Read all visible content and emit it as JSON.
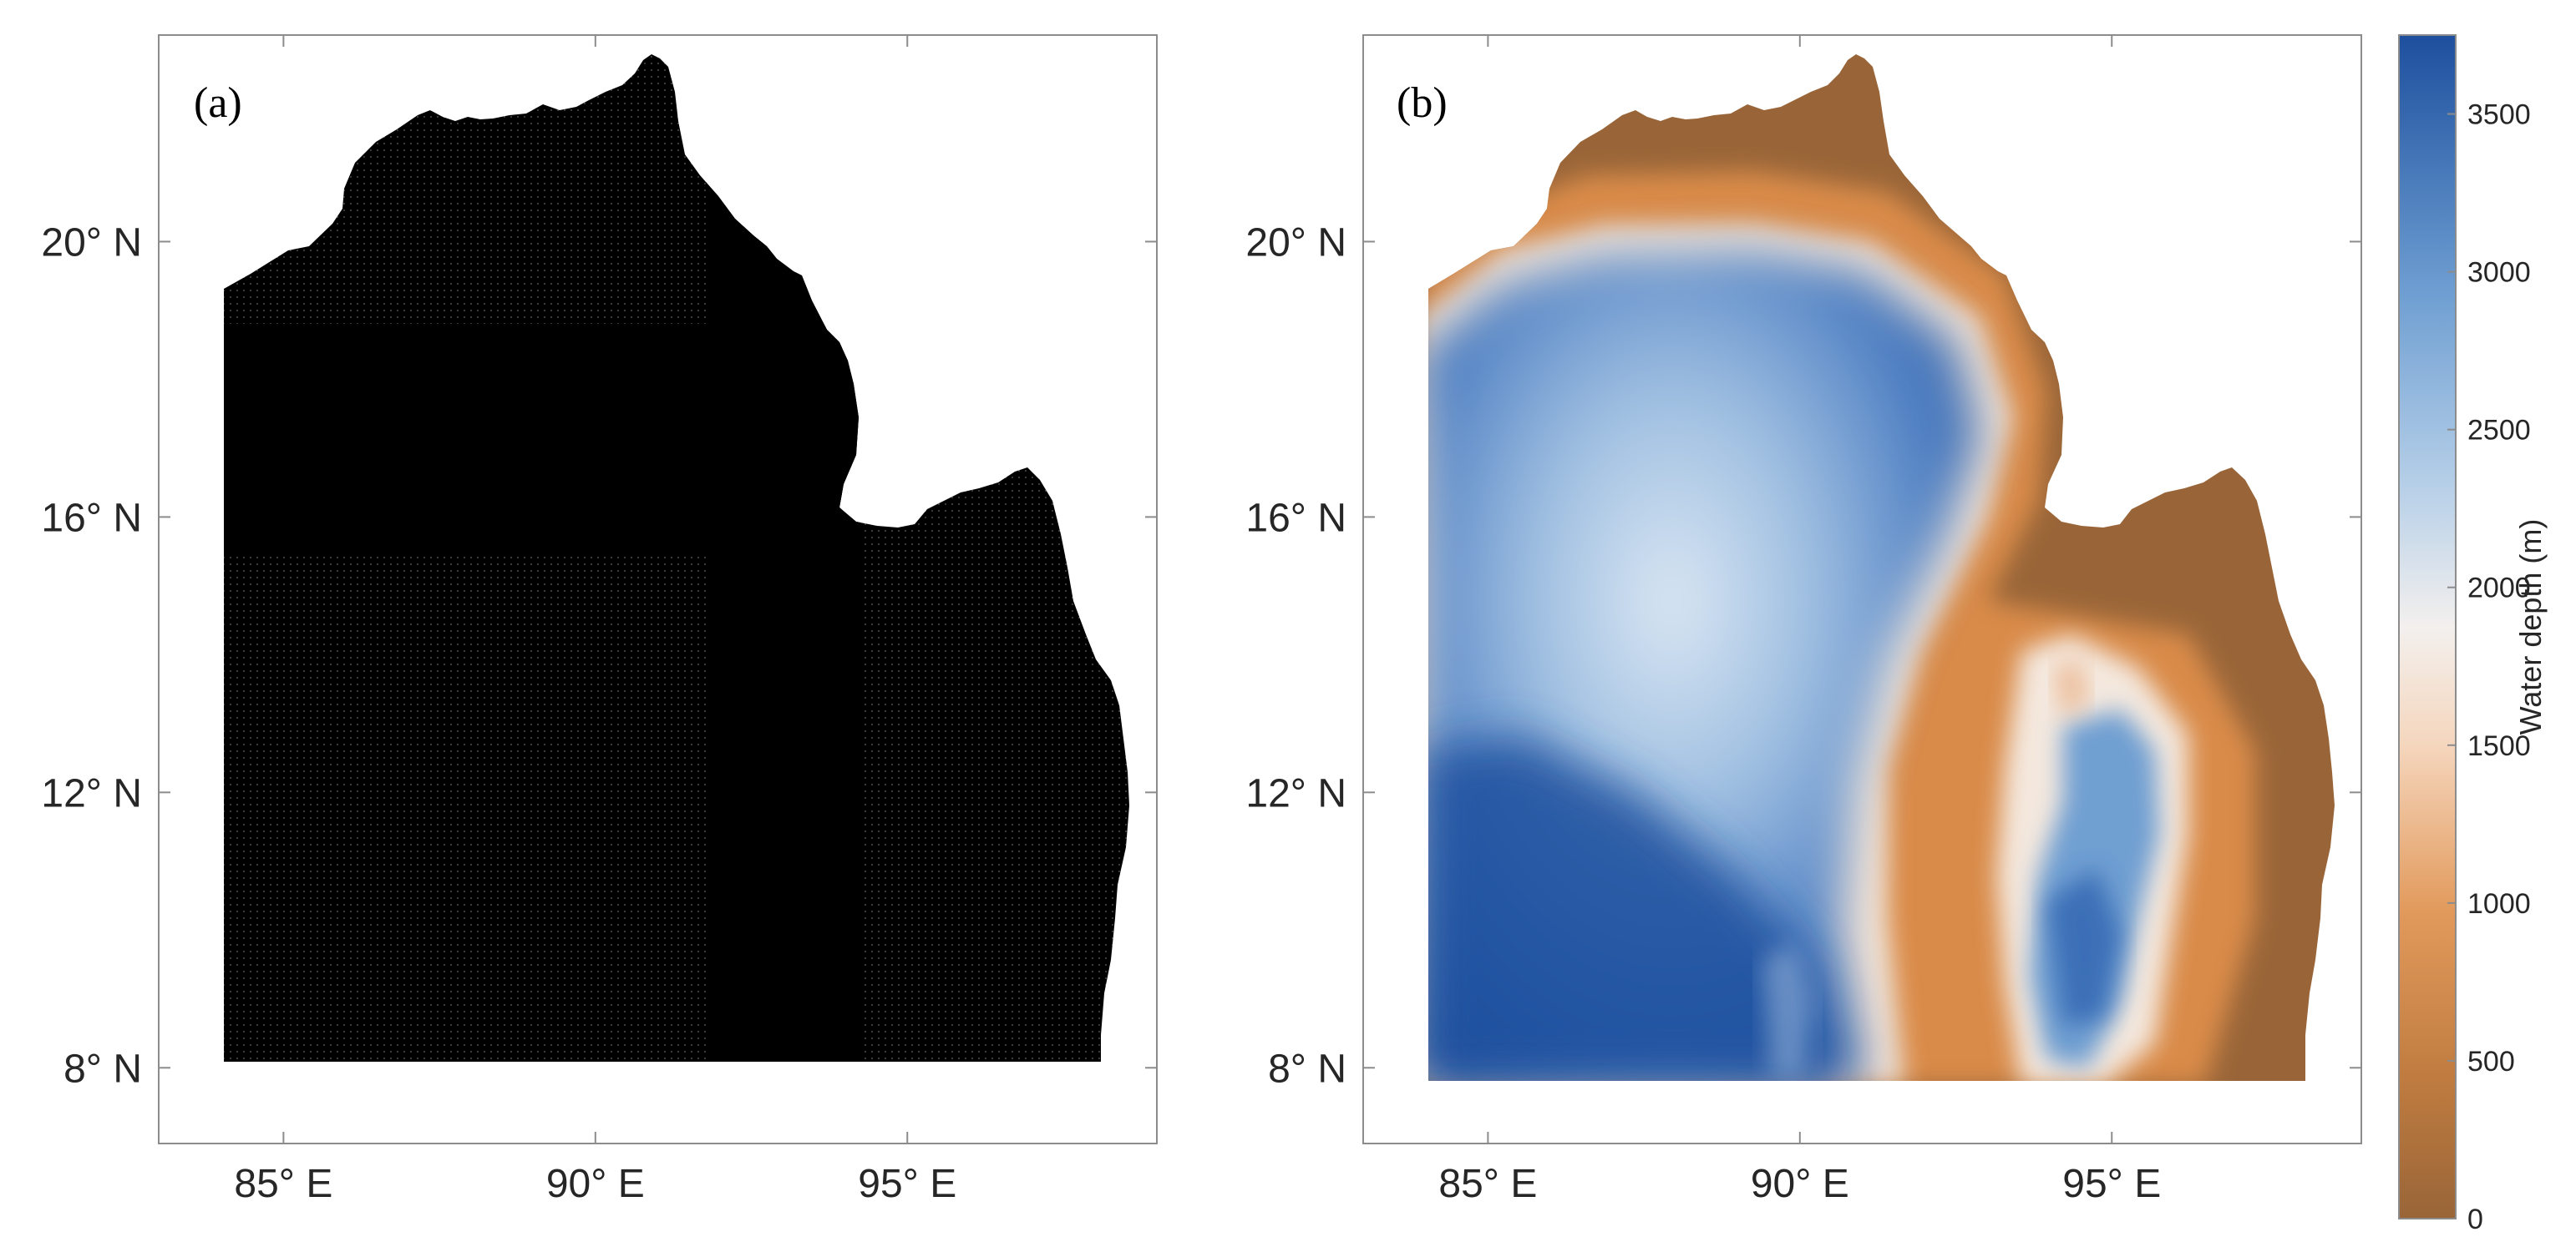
{
  "panels": [
    {
      "label": "(a)",
      "description_type": "grid-mask",
      "fill_color": "#000000"
    },
    {
      "label": "(b)",
      "description_type": "bathymetry"
    }
  ],
  "axes": {
    "x_ticks": [
      "85° E",
      "90° E",
      "95° E"
    ],
    "y_ticks": [
      "20° N",
      "16° N",
      "12° N",
      "8° N"
    ],
    "x_values": [
      85,
      90,
      95
    ],
    "y_values": [
      20,
      16,
      12,
      8
    ],
    "lon_range": [
      83.0,
      99.0
    ],
    "lat_range": [
      6.9,
      23.0
    ]
  },
  "colorbar": {
    "title": "Water depth (m)",
    "ticks": [
      "3500",
      "3000",
      "2500",
      "2000",
      "1500",
      "1000",
      "500",
      "0"
    ],
    "tick_values": [
      3500,
      3000,
      2500,
      2000,
      1500,
      1000,
      500,
      0
    ],
    "range": [
      0,
      3750
    ],
    "colors": {
      "deep": "#1d4f9e",
      "mid_blue": "#6f9fd2",
      "light": "#f3f0ee",
      "orange": "#e29a5c",
      "shallow": "#996538"
    }
  }
}
